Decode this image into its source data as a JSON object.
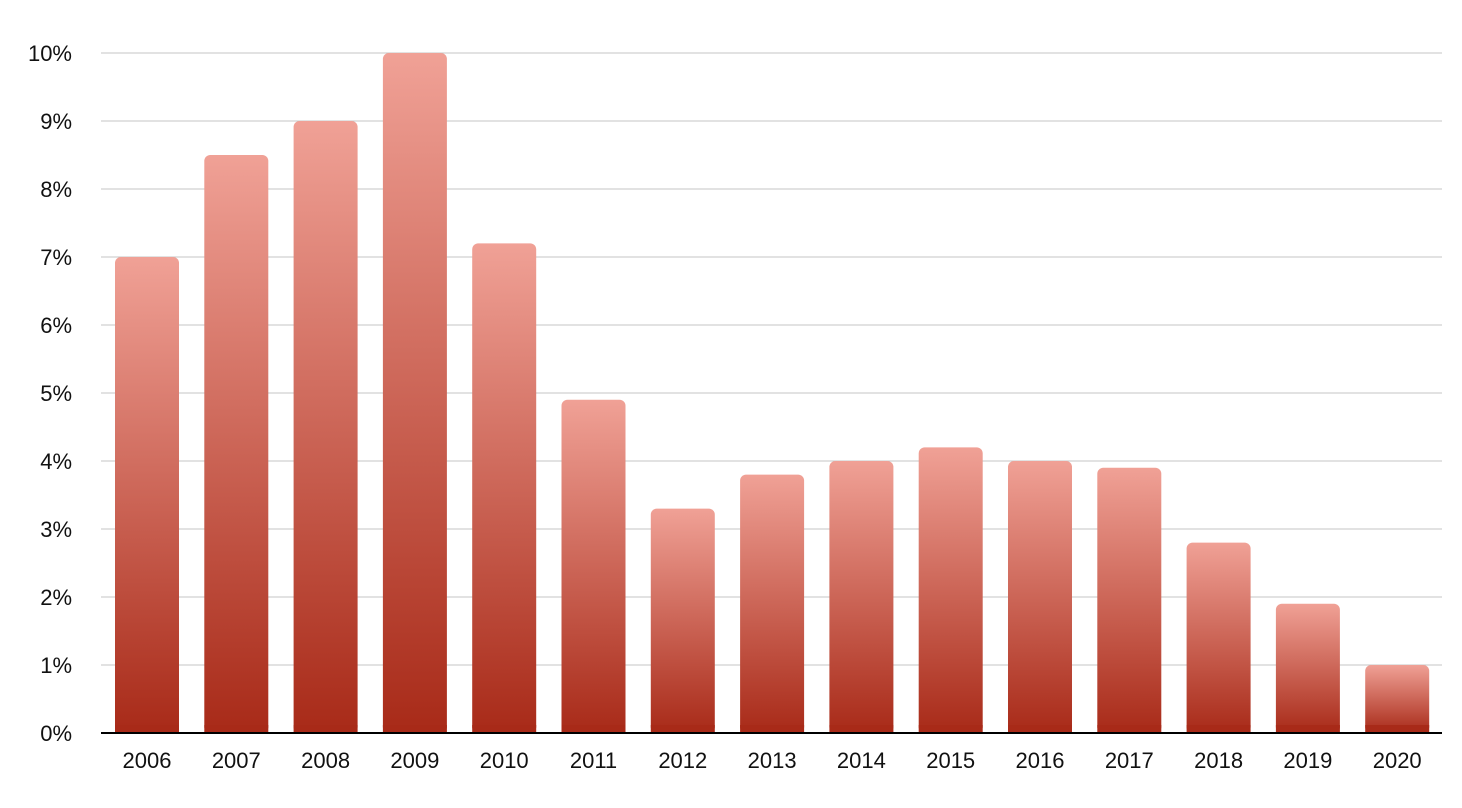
{
  "chart_data": {
    "type": "bar",
    "title": "",
    "xlabel": "",
    "ylabel": "",
    "categories": [
      "2006",
      "2007",
      "2008",
      "2009",
      "2010",
      "2011",
      "2012",
      "2013",
      "2014",
      "2015",
      "2016",
      "2017",
      "2018",
      "2019",
      "2020"
    ],
    "values": [
      7.0,
      8.5,
      9.0,
      10.0,
      7.2,
      4.9,
      3.3,
      3.8,
      4.0,
      4.2,
      4.0,
      3.9,
      2.8,
      1.9,
      1.0
    ],
    "value_format": "percent",
    "ylim": [
      0,
      10
    ],
    "yticks": [
      "0%",
      "1%",
      "2%",
      "3%",
      "4%",
      "5%",
      "6%",
      "7%",
      "8%",
      "9%",
      "10%"
    ],
    "grid": true,
    "legend": "none",
    "colors": {
      "bar_top": "#f0a196",
      "bar_bottom": "#a82a18",
      "grid": "#c4c4c4",
      "axis": "#000000"
    }
  }
}
